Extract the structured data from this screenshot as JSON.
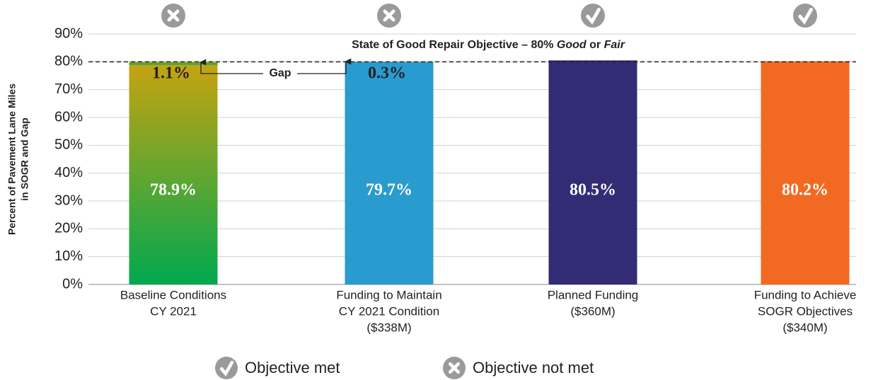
{
  "chart_data": {
    "type": "bar",
    "y_label": [
      "Percent of Pavement Lane Miles",
      "in SOGR and Gap"
    ],
    "categories": [
      [
        "Baseline Conditions",
        "CY 2021"
      ],
      [
        "Funding to Maintain",
        "CY 2021 Condition",
        "($338M)"
      ],
      [
        "Planned Funding",
        "($360M)"
      ],
      [
        "Funding to Achieve",
        "SOGR Objectives",
        "($340M)"
      ]
    ],
    "values": [
      78.9,
      79.7,
      80.5,
      80.2
    ],
    "value_labels": [
      "78.9%",
      "79.7%",
      "80.5%",
      "80.2%"
    ],
    "gap_values": [
      1.1,
      0.3,
      null,
      null
    ],
    "gap_value_labels": [
      "1.1%",
      "0.3%",
      null,
      null
    ],
    "gap_label": "Gap",
    "colors": [
      [
        "#00a84f",
        "#c6a311"
      ],
      "#2a9bcf",
      "#322c74",
      "#f26a21"
    ],
    "objective": 80,
    "objective_label": [
      "State of Good Repair Objective – 80% ",
      "Good",
      " or ",
      "Fair"
    ],
    "objective_met": [
      false,
      false,
      true,
      true
    ],
    "legend": [
      "Objective met",
      "Objective not met"
    ],
    "ylim": [
      0,
      90
    ],
    "yticks": [
      {
        "value": 0,
        "label": "0%"
      },
      {
        "value": 10,
        "label": "10%"
      },
      {
        "value": 20,
        "label": "20%"
      },
      {
        "value": 30,
        "label": "30%"
      },
      {
        "value": 40,
        "label": "40%"
      },
      {
        "value": 50,
        "label": "50%"
      },
      {
        "value": 60,
        "label": "60%"
      },
      {
        "value": 70,
        "label": "70%"
      },
      {
        "value": 80,
        "label": "80%"
      },
      {
        "value": 90,
        "label": "90%"
      }
    ],
    "grid": true
  }
}
